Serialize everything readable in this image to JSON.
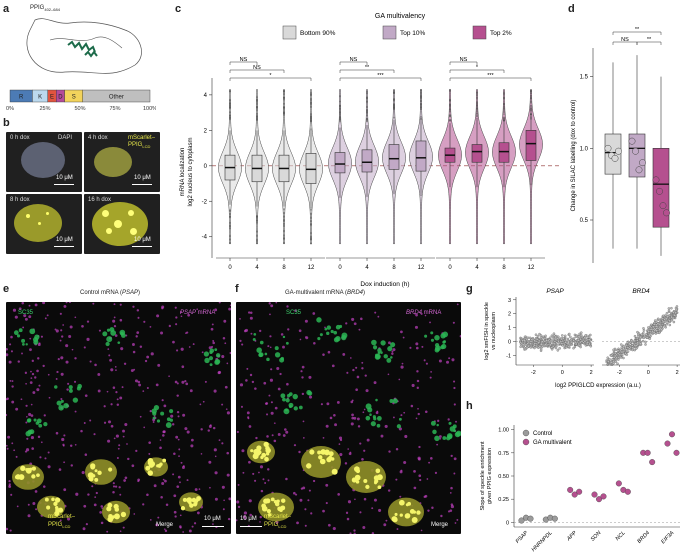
{
  "panels": {
    "a": {
      "letter": "a",
      "protein_label": "PPIG",
      "protein_sub": "402–684",
      "composition": [
        {
          "label": "R",
          "frac": 0.16,
          "color": "#4c7bb5"
        },
        {
          "label": "K",
          "frac": 0.11,
          "color": "#bcd9ee"
        },
        {
          "label": "E",
          "frac": 0.06,
          "color": "#e0543f"
        },
        {
          "label": "D",
          "frac": 0.06,
          "color": "#b44b9a"
        },
        {
          "label": "S",
          "frac": 0.13,
          "color": "#f2d35c"
        },
        {
          "label": "Other",
          "frac": 0.48,
          "color": "#bfbfbf"
        }
      ],
      "ticks": [
        "0%",
        "25%",
        "50%",
        "75%",
        "100%"
      ]
    },
    "b": {
      "letter": "b",
      "tiles": [
        {
          "time": "0 h dox",
          "extra": "DAPI",
          "scale": "10 μM"
        },
        {
          "time": "4 h dox",
          "extra": "mScarlet–",
          "extra2": "PPIG",
          "extra2_sub": "LCD",
          "scale": "10 μM"
        },
        {
          "time": "8 h dox",
          "scale": "10 μM"
        },
        {
          "time": "16 h dox",
          "scale": "10 μM"
        }
      ]
    },
    "c": {
      "letter": "c"
    },
    "d": {
      "letter": "d"
    },
    "e": {
      "letter": "e",
      "title": "Control mRNA (",
      "title_gene": "PSAP",
      "title_end": ")",
      "sc35": "SC35",
      "mrna_gene": "PSAP",
      "mrna_suffix": " mRNA",
      "overlay_label": "mScarlet–",
      "overlay_label2": "PPIG",
      "overlay_sub": "LCD",
      "merge": "Merge",
      "scale": "10 μM"
    },
    "f": {
      "letter": "f",
      "title": "GA-multivalent mRNA (",
      "title_gene": "BRD4",
      "title_end": ")",
      "sc35": "SC35",
      "mrna_gene": "BRD4",
      "mrna_suffix": " mRNA",
      "overlay_label": "mScarlet–",
      "overlay_label2": "PPIG",
      "overlay_sub": "LCD",
      "merge": "Merge",
      "scale": "10 μM"
    },
    "g": {
      "letter": "g"
    },
    "h": {
      "letter": "h"
    }
  },
  "chart_data": [
    {
      "id": "c",
      "type": "violin-box",
      "legend_title": "GA multivalency",
      "legend": [
        {
          "name": "Bottom 90%",
          "color": "#d9d9d9"
        },
        {
          "name": "Top 10%",
          "color": "#c1a9c6"
        },
        {
          "name": "Top 2%",
          "color": "#b5508f"
        }
      ],
      "ylabel": "mRNA localization",
      "ylabel2": "log2 nucleus to cytoplasm",
      "xlabel": "Dox induction (h)",
      "ylim": [
        -5.2,
        4.5
      ],
      "yticks": [
        -4,
        -2,
        0,
        2,
        4
      ],
      "groups": [
        {
          "name": "Bottom 90%",
          "color": "#d9d9d9",
          "x": [
            "0",
            "4",
            "8",
            "12"
          ],
          "medians": [
            -0.1,
            -0.15,
            -0.15,
            -0.2
          ],
          "q1": [
            -0.8,
            -0.9,
            -0.9,
            -1.0
          ],
          "q3": [
            0.6,
            0.6,
            0.6,
            0.7
          ],
          "sig": [
            {
              "a": 0,
              "b": 1,
              "label": "NS"
            },
            {
              "a": 0,
              "b": 2,
              "label": "NS"
            },
            {
              "a": 0,
              "b": 3,
              "label": "*"
            }
          ]
        },
        {
          "name": "Top 10%",
          "color": "#c1a9c6",
          "x": [
            "0",
            "4",
            "8",
            "12"
          ],
          "medians": [
            0.1,
            0.2,
            0.4,
            0.45
          ],
          "q1": [
            -0.4,
            -0.35,
            -0.2,
            -0.3
          ],
          "q3": [
            0.75,
            0.9,
            1.2,
            1.4
          ],
          "sig": [
            {
              "a": 0,
              "b": 1,
              "label": "NS"
            },
            {
              "a": 0,
              "b": 2,
              "label": "**"
            },
            {
              "a": 0,
              "b": 3,
              "label": "***"
            }
          ]
        },
        {
          "name": "Top 2%",
          "color": "#b5508f",
          "x": [
            "0",
            "4",
            "8",
            "12"
          ],
          "medians": [
            0.6,
            0.8,
            0.8,
            1.25
          ],
          "q1": [
            0.2,
            0.2,
            0.2,
            0.3
          ],
          "q3": [
            1.0,
            1.2,
            1.3,
            2.0
          ],
          "sig": [
            {
              "a": 0,
              "b": 1,
              "label": "NS"
            },
            {
              "a": 0,
              "b": 2,
              "label": "*"
            },
            {
              "a": 0,
              "b": 3,
              "label": "***"
            }
          ]
        }
      ]
    },
    {
      "id": "d",
      "type": "box",
      "ylabel": "Change in SILAC labelling (dox to control)",
      "ylim": [
        0.2,
        1.7
      ],
      "yticks": [
        0.5,
        1.0,
        1.5
      ],
      "yticklabels": [
        "0.5",
        "1.0",
        "1.5"
      ],
      "boxes": [
        {
          "color": "#d9d9d9",
          "median": 0.97,
          "q1": 0.82,
          "q3": 1.1,
          "wlo": 0.3,
          "whi": 1.6,
          "points": [
            1.0,
            0.95,
            0.93,
            0.98
          ]
        },
        {
          "color": "#c1a9c6",
          "median": 1.0,
          "q1": 0.8,
          "q3": 1.1,
          "wlo": 0.3,
          "whi": 1.65,
          "points": [
            1.05,
            0.98,
            0.85,
            0.9
          ]
        },
        {
          "color": "#b5508f",
          "median": 0.75,
          "q1": 0.45,
          "q3": 1.0,
          "wlo": 0.25,
          "whi": 1.5,
          "points": [
            0.78,
            0.7,
            0.6,
            0.55
          ]
        }
      ],
      "sig": [
        {
          "a": 0,
          "b": 1,
          "label": "NS"
        },
        {
          "a": 1,
          "b": 2,
          "label": "**"
        },
        {
          "a": 0,
          "b": 2,
          "label": "**"
        }
      ]
    },
    {
      "id": "g",
      "type": "scatter",
      "facets": [
        "PSAP",
        "BRD4"
      ],
      "ylabel": "log2 smFISH in speckle",
      "ylabel2": "vs nucleoplasm",
      "xlabel": "log2 PPIGLCD expression (a.u.)",
      "xlim": [
        -3.2,
        2.2
      ],
      "ylim": [
        -1.7,
        3.2
      ],
      "xticks": [
        -2,
        0,
        2
      ],
      "yticks": [
        -1,
        0,
        1,
        2,
        3
      ],
      "slopes": [
        0.04,
        0.75
      ]
    },
    {
      "id": "h",
      "type": "scatter",
      "ylabel": "Slope of speckle enrichment",
      "ylabel2": "given PPIG expression",
      "legend": [
        {
          "name": "Control",
          "color": "#9b9b9b"
        },
        {
          "name": "GA multivalent",
          "color": "#b5508f"
        }
      ],
      "ylim": [
        -0.05,
        1.05
      ],
      "yticks": [
        0,
        0.25,
        0.5,
        0.75,
        1.0
      ],
      "yticklabels": [
        "0",
        "0.25",
        "0.50",
        "0.75",
        "1.00"
      ],
      "categories": [
        "PSAP",
        "HNRNPDL",
        "APP",
        "SON",
        "NCL",
        "BRD4",
        "EIF3A"
      ],
      "series": [
        {
          "name": "Control",
          "color": "#9b9b9b",
          "points": [
            [
              0,
              0.02
            ],
            [
              0,
              0.05
            ],
            [
              0,
              0.04
            ],
            [
              1,
              0.03
            ],
            [
              1,
              0.05
            ],
            [
              1,
              0.04
            ]
          ]
        },
        {
          "name": "GA multivalent",
          "color": "#b5508f",
          "points": [
            [
              2,
              0.35
            ],
            [
              2,
              0.3
            ],
            [
              2,
              0.33
            ],
            [
              3,
              0.3
            ],
            [
              3,
              0.25
            ],
            [
              3,
              0.28
            ],
            [
              4,
              0.42
            ],
            [
              4,
              0.35
            ],
            [
              4,
              0.33
            ],
            [
              5,
              0.75
            ],
            [
              5,
              0.75
            ],
            [
              5,
              0.65
            ],
            [
              6,
              0.85
            ],
            [
              6,
              0.95
            ],
            [
              6,
              0.75
            ]
          ]
        }
      ]
    }
  ]
}
